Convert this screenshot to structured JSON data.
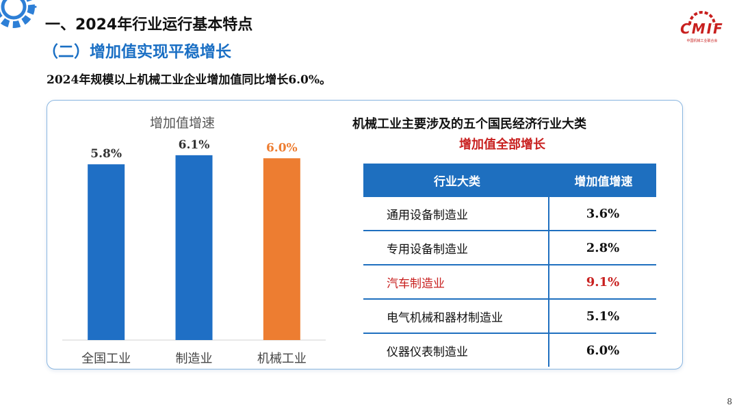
{
  "header": {
    "title": "一、2024年行业运行基本特点",
    "subtitle": "（二）增加值实现平稳增长",
    "summary": "2024年规模以上机械工业企业增加值同比增长6.0%。"
  },
  "logo": {
    "text": "CMIF",
    "subtext": "中国机械工业联合会",
    "color": "#c8201f"
  },
  "chart_data": {
    "type": "bar",
    "title": "增加值增速",
    "categories": [
      "全国工业",
      "制造业",
      "机械工业"
    ],
    "values": [
      5.8,
      6.1,
      6.0
    ],
    "value_labels": [
      "5.8%",
      "6.1%",
      "6.0%"
    ],
    "colors": [
      "#1f6fc5",
      "#1f6fc5",
      "#ed7d31"
    ],
    "ylim": [
      0,
      7
    ],
    "grid": false,
    "legend": "none"
  },
  "table": {
    "title_line1": "机械工业主要涉及的五个国民经济行业大类",
    "title_line2": "增加值全部增长",
    "headers": [
      "行业大类",
      "增加值增速"
    ],
    "rows": [
      {
        "name": "通用设备制造业",
        "value": "3.6%",
        "highlight": false
      },
      {
        "name": "专用设备制造业",
        "value": "2.8%",
        "highlight": false
      },
      {
        "name": "汽车制造业",
        "value": "9.1%",
        "highlight": true
      },
      {
        "name": "电气机械和器材制造业",
        "value": "5.1%",
        "highlight": false
      },
      {
        "name": "仪器仪表制造业",
        "value": "6.0%",
        "highlight": false
      }
    ],
    "header_color": "#1e6fbf",
    "highlight_color": "#c8201f"
  },
  "footer": {
    "page_number": "8"
  }
}
